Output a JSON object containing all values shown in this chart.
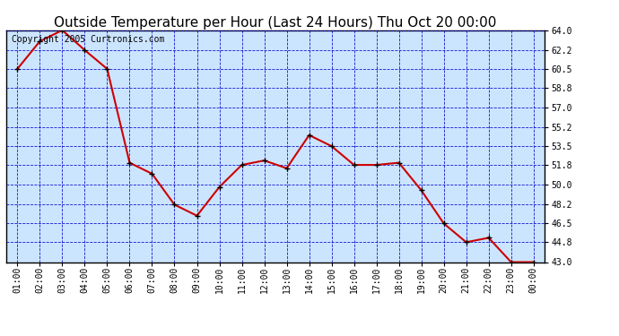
{
  "title": "Outside Temperature per Hour (Last 24 Hours) Thu Oct 20 00:00",
  "copyright": "Copyright 2005 Curtronics.com",
  "x_labels": [
    "01:00",
    "02:00",
    "03:00",
    "04:00",
    "05:00",
    "06:00",
    "07:00",
    "08:00",
    "09:00",
    "10:00",
    "11:00",
    "12:00",
    "13:00",
    "14:00",
    "15:00",
    "16:00",
    "17:00",
    "18:00",
    "19:00",
    "20:00",
    "21:00",
    "22:00",
    "23:00",
    "00:00"
  ],
  "y_values": [
    60.5,
    63.0,
    64.0,
    62.2,
    60.5,
    52.0,
    51.0,
    48.2,
    47.2,
    49.8,
    51.8,
    52.2,
    51.5,
    54.5,
    53.5,
    51.8,
    51.8,
    52.0,
    49.5,
    46.5,
    44.8,
    45.2,
    43.0,
    43.0
  ],
  "y_ticks": [
    43.0,
    44.8,
    46.5,
    48.2,
    50.0,
    51.8,
    53.5,
    55.2,
    57.0,
    58.8,
    60.5,
    62.2,
    64.0
  ],
  "y_min": 43.0,
  "y_max": 64.0,
  "line_color": "#cc0000",
  "marker_color": "#000000",
  "background_color": "#cce5ff",
  "plot_bg_color": "#ffffff",
  "grid_color": "#0000cc",
  "title_fontsize": 11,
  "copyright_fontsize": 7
}
